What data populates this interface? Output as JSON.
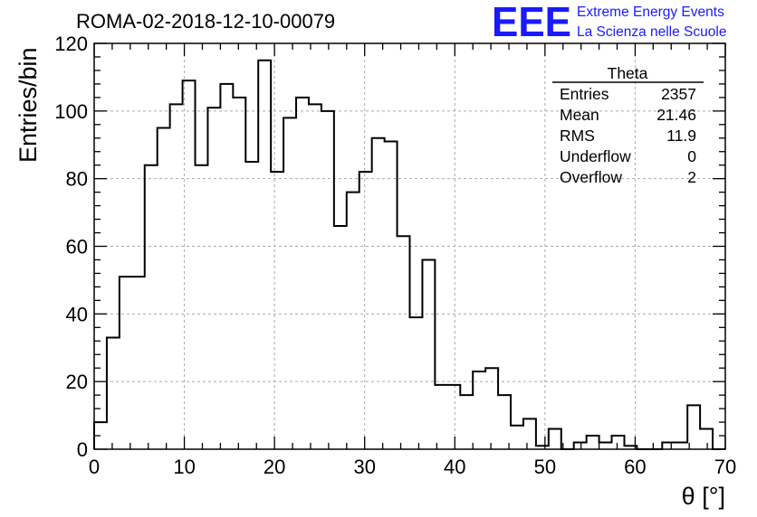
{
  "logo": {
    "mark": "EEE",
    "line1": "Extreme Energy Events",
    "line2": "La Scienza nelle Scuole",
    "color": "#1a1aff"
  },
  "stats": {
    "title": "Theta",
    "rows": [
      {
        "label": "Entries",
        "value": "2357"
      },
      {
        "label": "Mean",
        "value": "21.46"
      },
      {
        "label": "RMS",
        "value": "11.9"
      },
      {
        "label": "Underflow",
        "value": "0"
      },
      {
        "label": "Overflow",
        "value": "2"
      }
    ]
  },
  "chart_data": {
    "type": "bar",
    "histogram": true,
    "title": "ROMA-02-2018-12-10-00079",
    "xlabel": "θ [°]",
    "ylabel": "Entries/bin",
    "xlim": [
      0,
      70
    ],
    "ylim": [
      0,
      120
    ],
    "bin_width": 1.4,
    "xticks": [
      0,
      10,
      20,
      30,
      40,
      50,
      60,
      70
    ],
    "yticks": [
      0,
      20,
      40,
      60,
      80,
      100,
      120
    ],
    "grid": true,
    "legend": "top-right",
    "line_color": "#000000",
    "values": [
      8,
      33,
      51,
      51,
      84,
      95,
      102,
      109,
      84,
      101,
      108,
      104,
      85,
      115,
      82,
      98,
      104,
      102,
      100,
      66,
      76,
      82,
      92,
      91,
      63,
      39,
      56,
      19,
      19,
      16,
      23,
      24,
      16,
      7,
      9,
      1,
      6,
      0,
      2,
      4,
      2,
      4,
      1,
      0,
      0,
      2,
      2,
      13,
      6,
      0
    ]
  }
}
